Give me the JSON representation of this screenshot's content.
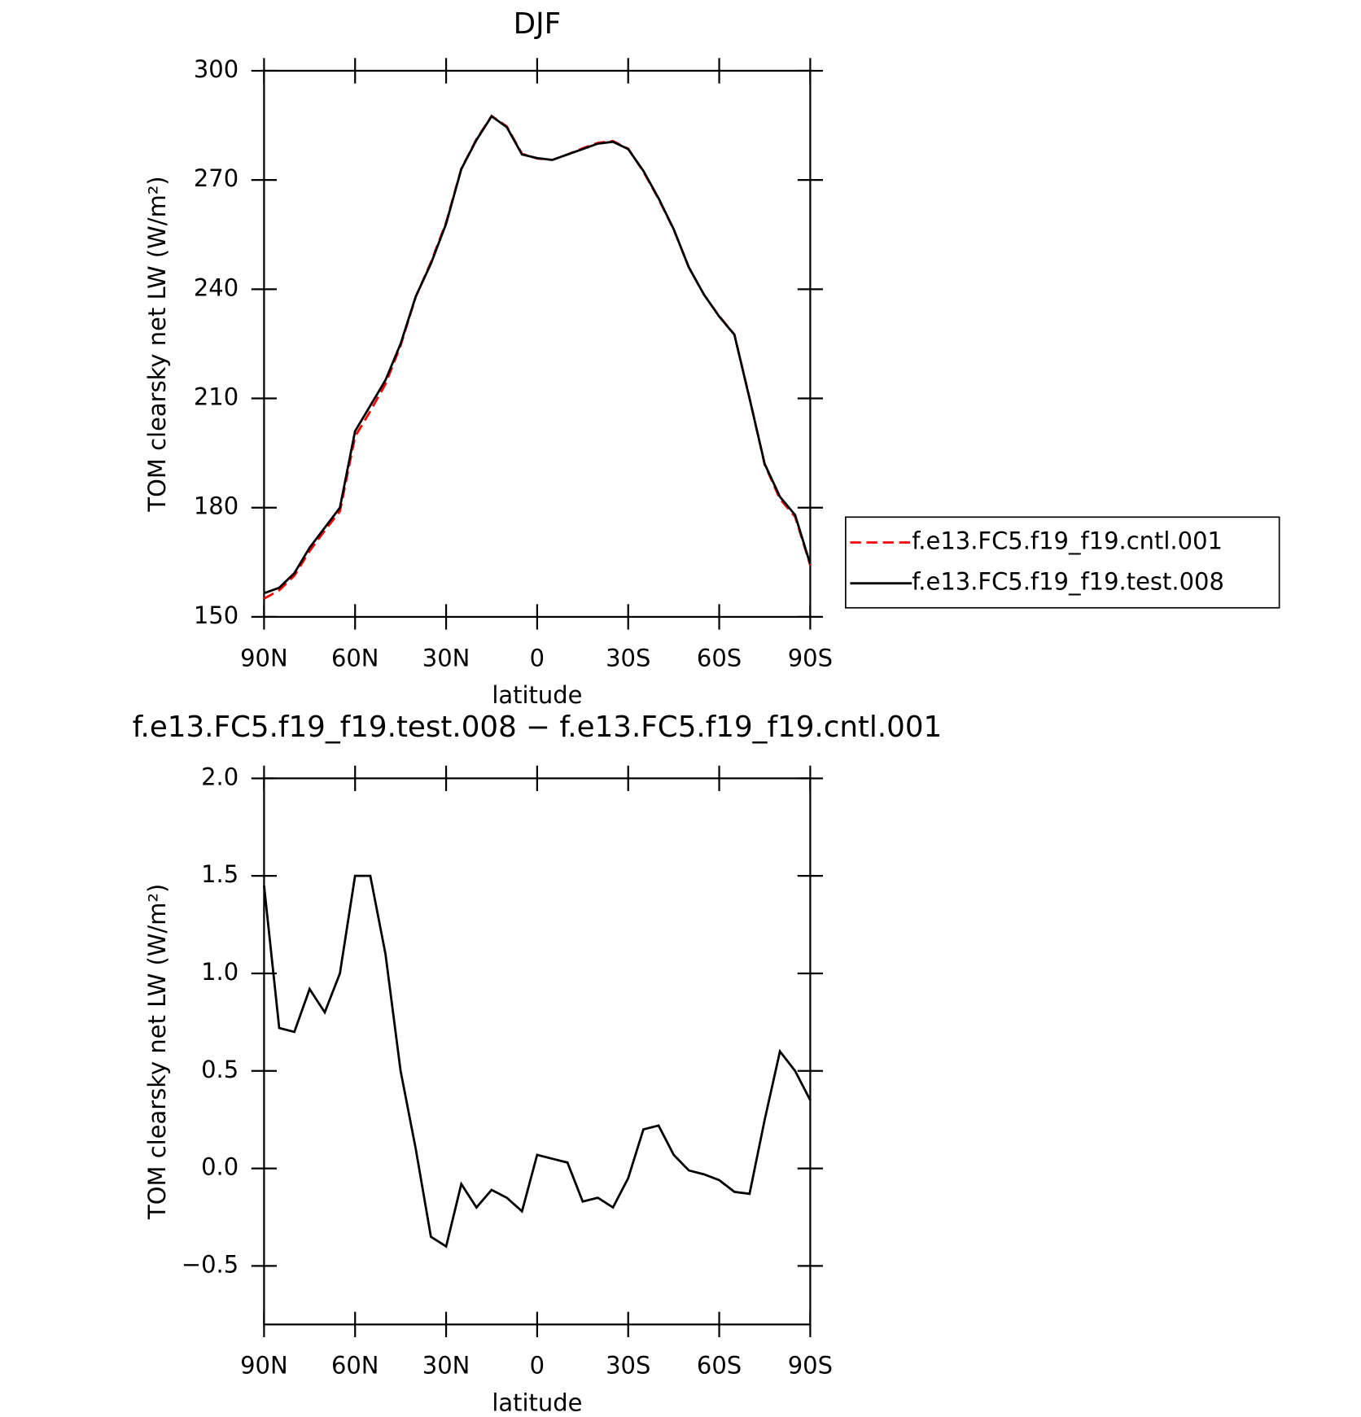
{
  "chart_data": [
    {
      "type": "line",
      "title": "DJF",
      "xlabel": "latitude",
      "ylabel": "TOM clearsky net LW (W/m²)",
      "x": [
        90,
        85,
        80,
        75,
        70,
        65,
        60,
        55,
        50,
        45,
        40,
        35,
        30,
        25,
        20,
        15,
        10,
        5,
        0,
        -5,
        -10,
        -15,
        -20,
        -25,
        -30,
        -35,
        -40,
        -45,
        -50,
        -55,
        -60,
        -65,
        -70,
        -75,
        -80,
        -85,
        -90
      ],
      "series": [
        {
          "name": "f.e13.FC5.f19_f19.cntl.001",
          "color": "#ff0000",
          "linestyle": "dashed",
          "values": [
            155,
            157.3,
            161.3,
            168.1,
            173.7,
            179,
            199.5,
            206.5,
            213.9,
            224.5,
            237.9,
            247.4,
            258.4,
            273.1,
            281.2,
            287.6,
            284.7,
            277.2,
            275.9,
            275.5,
            277,
            278.7,
            280.2,
            280.7,
            278.6,
            272.3,
            264.8,
            256.4,
            246,
            238.5,
            232.6,
            227.6,
            210.1,
            191.8,
            182.4,
            177.5,
            164.2
          ]
        },
        {
          "name": "f.e13.FC5.f19_f19.test.008",
          "color": "#000000",
          "linestyle": "solid",
          "values": [
            156.5,
            158,
            162,
            169,
            174.5,
            180,
            201,
            208,
            215,
            225,
            238,
            247,
            258,
            273,
            281,
            287.5,
            284.5,
            277,
            276,
            275.5,
            277,
            278.5,
            280,
            280.5,
            278.5,
            272.5,
            265,
            256.5,
            246,
            238.5,
            232.5,
            227.5,
            210,
            192,
            183,
            178,
            164.5
          ]
        }
      ],
      "xlim": [
        90,
        -90
      ],
      "xticks": [
        {
          "value": 90,
          "label": "90N"
        },
        {
          "value": 60,
          "label": "60N"
        },
        {
          "value": 30,
          "label": "30N"
        },
        0,
        {
          "value": -30,
          "label": "30S"
        },
        {
          "value": -60,
          "label": "60S"
        },
        {
          "value": -90,
          "label": "90S"
        }
      ],
      "ylim": [
        150,
        300
      ],
      "yticks": [
        150,
        180,
        210,
        240,
        270,
        300
      ],
      "legend": "right"
    },
    {
      "type": "line",
      "title": "f.e13.FC5.f19_f19.test.008 − f.e13.FC5.f19_f19.cntl.001",
      "xlabel": "latitude",
      "ylabel": "TOM clearsky net LW (W/m²)",
      "x": [
        90,
        85,
        80,
        75,
        70,
        65,
        60,
        55,
        50,
        45,
        40,
        35,
        30,
        25,
        20,
        15,
        10,
        5,
        0,
        -5,
        -10,
        -15,
        -20,
        -25,
        -30,
        -35,
        -40,
        -45,
        -50,
        -55,
        -60,
        -65,
        -70,
        -75,
        -80,
        -85,
        -90
      ],
      "series": [
        {
          "color": "#000000",
          "linestyle": "solid",
          "values": [
            1.45,
            0.72,
            0.7,
            0.92,
            0.8,
            1.0,
            1.5,
            1.5,
            1.1,
            0.5,
            0.1,
            -0.35,
            -0.4,
            -0.08,
            -0.2,
            -0.11,
            -0.15,
            -0.22,
            0.07,
            0.05,
            0.03,
            -0.17,
            -0.15,
            -0.2,
            -0.05,
            0.2,
            0.22,
            0.07,
            -0.01,
            -0.03,
            -0.06,
            -0.12,
            -0.13,
            0.25,
            0.6,
            0.5,
            0.35
          ]
        }
      ],
      "xlim": [
        90,
        -90
      ],
      "xticks": [
        {
          "value": 90,
          "label": "90N"
        },
        {
          "value": 60,
          "label": "60N"
        },
        {
          "value": 30,
          "label": "30N"
        },
        0,
        {
          "value": -30,
          "label": "30S"
        },
        {
          "value": -60,
          "label": "60S"
        },
        {
          "value": -90,
          "label": "90S"
        }
      ],
      "ylim": [
        -0.8,
        2.0
      ],
      "yticks": [
        {
          "value": -0.5,
          "label": "−0.5"
        },
        {
          "value": 0,
          "label": "0.0"
        },
        {
          "value": 0.5,
          "label": "0.5"
        },
        {
          "value": 1,
          "label": "1.0"
        },
        {
          "value": 1.5,
          "label": "1.5"
        },
        {
          "value": 2,
          "label": "2.0"
        }
      ]
    }
  ]
}
